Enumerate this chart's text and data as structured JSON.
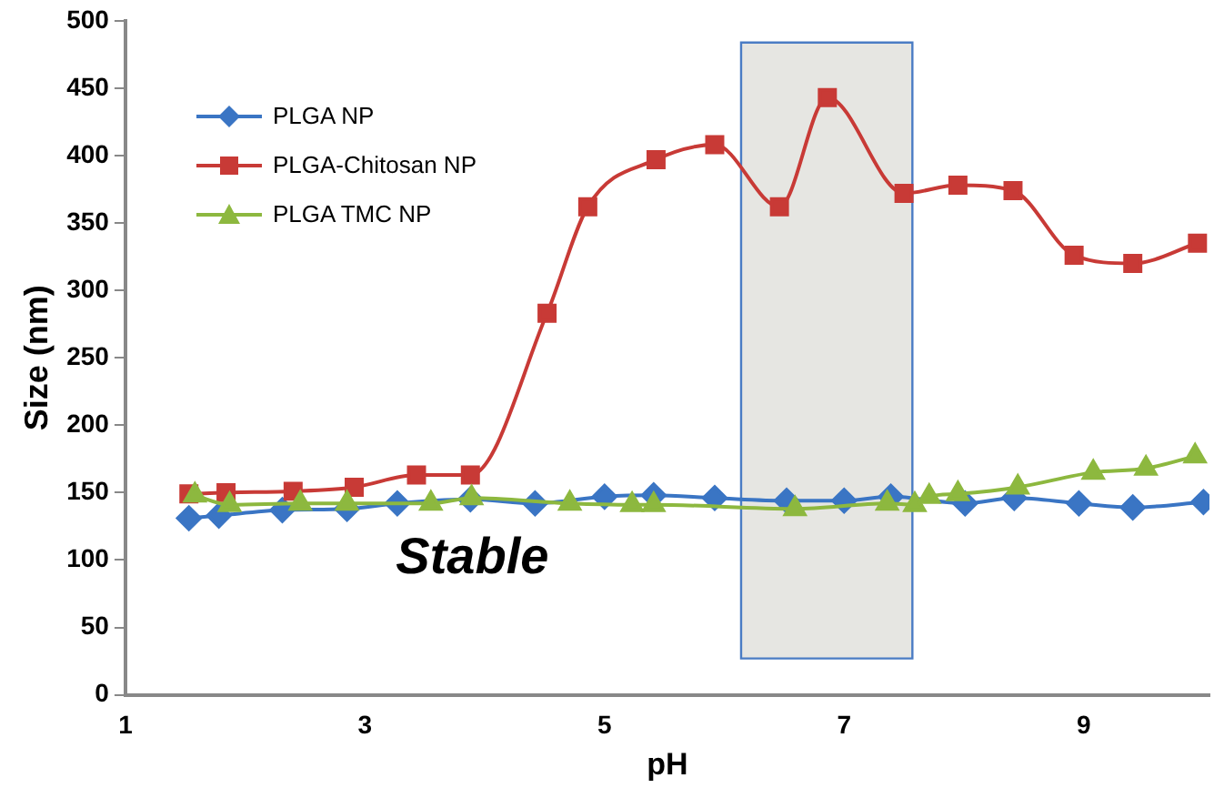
{
  "chart_data": {
    "type": "line",
    "xlabel": "pH",
    "ylabel": "Size (nm)",
    "xlim": [
      1,
      10.05
    ],
    "xticks": [
      1,
      3,
      5,
      7,
      9
    ],
    "ylim": [
      0,
      500
    ],
    "yticks": [
      0,
      50,
      100,
      150,
      200,
      250,
      300,
      350,
      400,
      450,
      500
    ],
    "grid": false,
    "legend": "left",
    "line_style": "solid",
    "annotations": [
      "Stable"
    ],
    "bands": [
      {
        "axis": "x",
        "from": 6.14,
        "to": 7.57,
        "color": "#e6e6e2"
      }
    ],
    "series": [
      {
        "name": "PLGA NP",
        "color": "#3a75c4",
        "marker": "diamond",
        "x": [
          1.53,
          1.78,
          2.31,
          2.85,
          3.27,
          3.88,
          4.42,
          5.0,
          5.41,
          5.92,
          6.52,
          7.0,
          7.39,
          8.01,
          8.42,
          8.96,
          9.41,
          10.0
        ],
        "values": [
          131,
          133,
          137,
          138,
          142,
          145,
          142,
          147,
          148,
          146,
          144,
          144,
          147,
          142,
          146,
          142,
          139,
          143
        ]
      },
      {
        "name": "PLGA-Chitosan NP",
        "color": "#c83a36",
        "marker": "square",
        "x": [
          1.53,
          1.84,
          2.4,
          2.91,
          3.43,
          3.88,
          4.52,
          4.86,
          5.43,
          5.92,
          6.46,
          6.86,
          7.5,
          7.95,
          8.41,
          8.92,
          9.41,
          9.95
        ],
        "values": [
          149,
          150,
          151,
          154,
          163,
          163,
          283,
          362,
          397,
          408,
          362,
          443,
          372,
          378,
          374,
          326,
          320,
          335
        ]
      },
      {
        "name": "PLGA TMC NP",
        "color": "#8db83f",
        "marker": "triangle",
        "x": [
          1.58,
          1.87,
          2.46,
          2.85,
          3.55,
          3.89,
          4.71,
          5.23,
          5.41,
          6.59,
          7.36,
          7.59,
          7.71,
          7.95,
          8.45,
          9.08,
          9.52,
          9.93
        ],
        "values": [
          148,
          141,
          142,
          142,
          142,
          146,
          142,
          141,
          141,
          138,
          142,
          141,
          147,
          149,
          154,
          165,
          168,
          177
        ]
      }
    ]
  }
}
